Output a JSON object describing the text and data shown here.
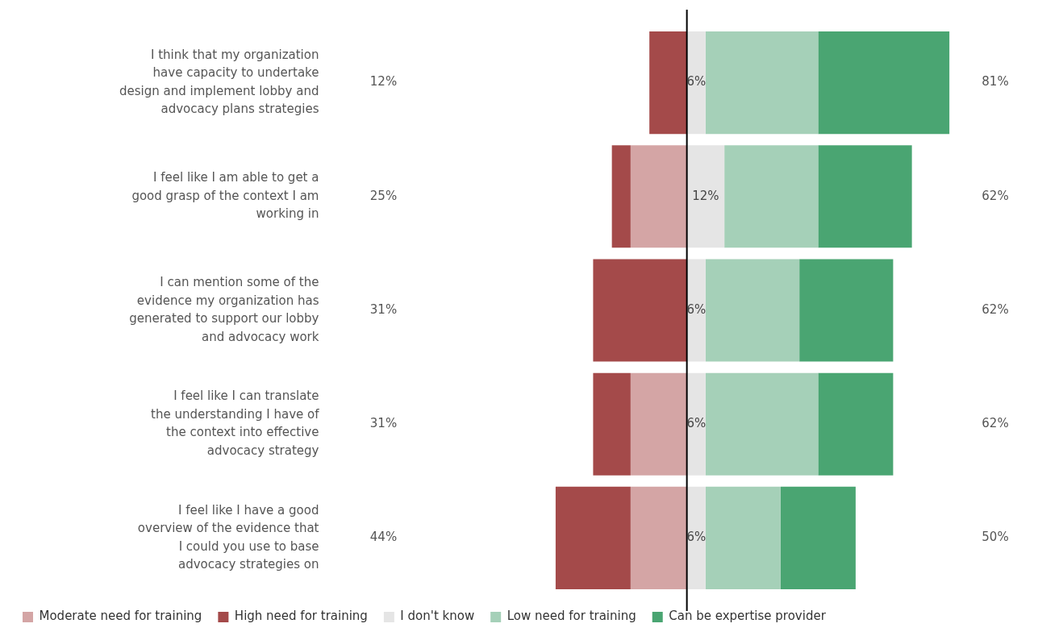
{
  "chart_data": {
    "type": "bar",
    "orientation": "horizontal",
    "stacked": true,
    "categories": [
      "I think that my organization have capacity to undertake design and implement lobby and advocacy plans strategies",
      "I feel like I am able to get a good grasp of the context I am working in",
      "I can mention some of the evidence my organization has generated to support our lobby and advocacy work",
      "I feel like I can translate the understanding I have of the context into effective advocacy strategy",
      "I feel like I have a good overview of the evidence that I could you use to base advocacy strategies on"
    ],
    "series": [
      {
        "name": "Moderate need for training",
        "color": "#d4a5a5",
        "values": [
          0,
          -18.75,
          0,
          -18.75,
          -18.75
        ]
      },
      {
        "name": "High need for training",
        "color": "#a44a4a",
        "values": [
          -12.5,
          -6.25,
          -31.25,
          -12.5,
          -25
        ]
      },
      {
        "name": "I don't know",
        "color": "#e5e5e5",
        "values": [
          6.25,
          12.5,
          6.25,
          6.25,
          6.25
        ],
        "value_labels": [
          "6%",
          "12%",
          "6%",
          "6%",
          "6%"
        ]
      },
      {
        "name": "Low need for training",
        "color": "#a5d0b8",
        "values": [
          37.5,
          31.25,
          31.25,
          37.5,
          25
        ]
      },
      {
        "name": "Can be expertise provider",
        "color": "#4aa572",
        "values": [
          43.75,
          31.25,
          31.25,
          25,
          25
        ]
      }
    ],
    "annotations": [
      "12%",
      "81%",
      "25%",
      "62%",
      "31%",
      "62%",
      "31%",
      "62%",
      "44%",
      "50%"
    ],
    "ref_lines": [
      {
        "axis": "x",
        "value": 0,
        "color": "#000000"
      }
    ],
    "legend": "bottom",
    "grid": false,
    "tick_labels": "y"
  }
}
